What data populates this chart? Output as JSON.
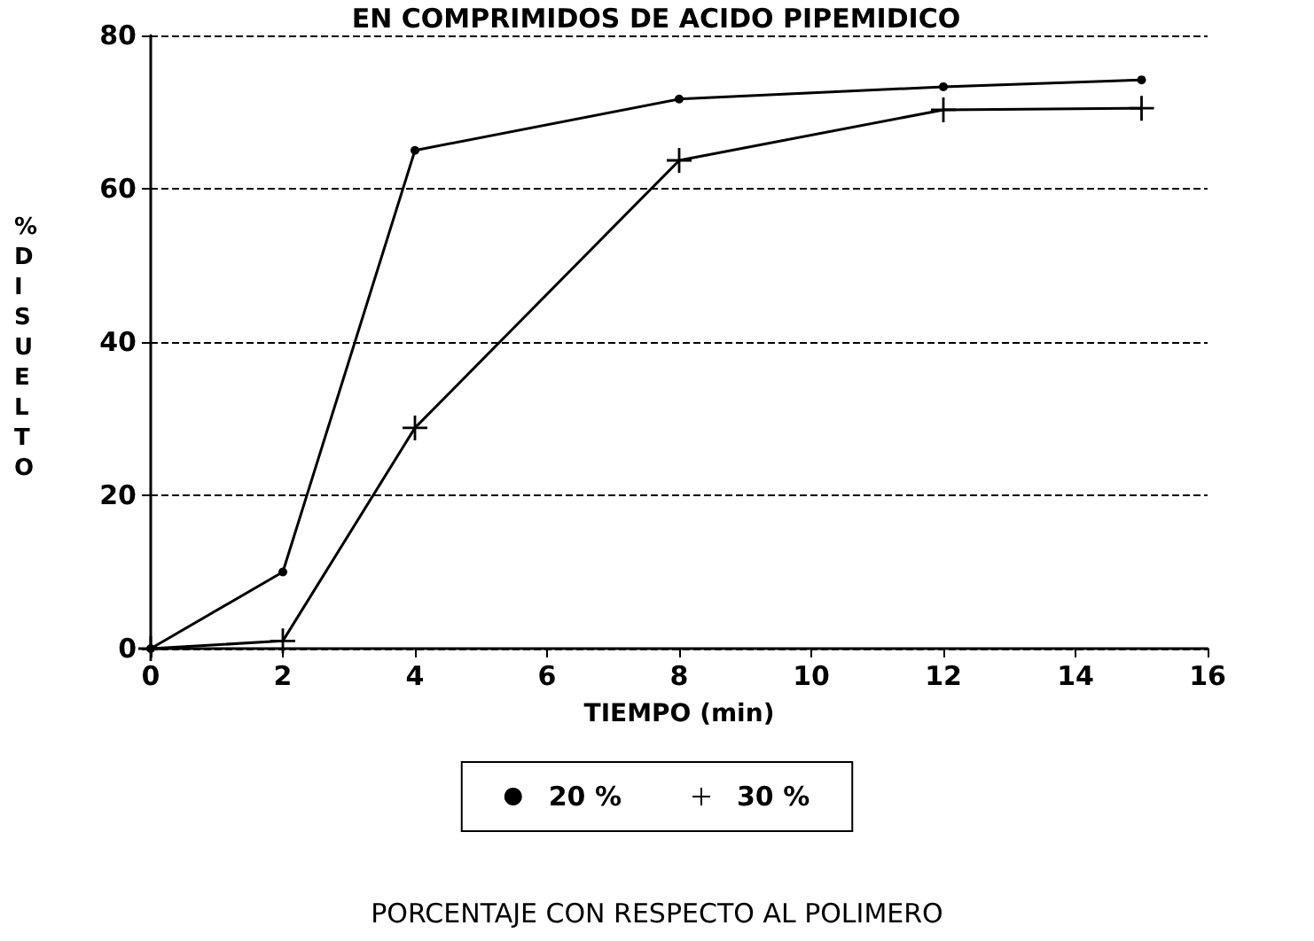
{
  "chart_data": {
    "type": "line",
    "title": "EN COMPRIMIDOS DE ACIDO PIPEMIDICO",
    "xlabel": "TIEMPO (min)",
    "ylabel": "% DISUELTO",
    "x": [
      0,
      2,
      4,
      8,
      12,
      15
    ],
    "series": [
      {
        "name": "20 %",
        "color": "#000000",
        "marker": "circle",
        "values": [
          0,
          10,
          65,
          71.7,
          73.3,
          74.2
        ]
      },
      {
        "name": "30 %",
        "color": "#000000",
        "marker": "cross",
        "values": [
          0,
          1,
          28.8,
          63.7,
          70.3,
          70.5
        ]
      }
    ],
    "xlim": [
      0,
      16
    ],
    "xticks": [
      0,
      2,
      4,
      6,
      8,
      10,
      12,
      14,
      16
    ],
    "ylim": [
      0,
      80
    ],
    "yticks": [
      0,
      20,
      40,
      60,
      80
    ],
    "grid": "y",
    "legend": "bottom",
    "line_style": "solid",
    "annotations": [
      "PORCENTAJE CON RESPECTO AL POLIMERO"
    ]
  }
}
